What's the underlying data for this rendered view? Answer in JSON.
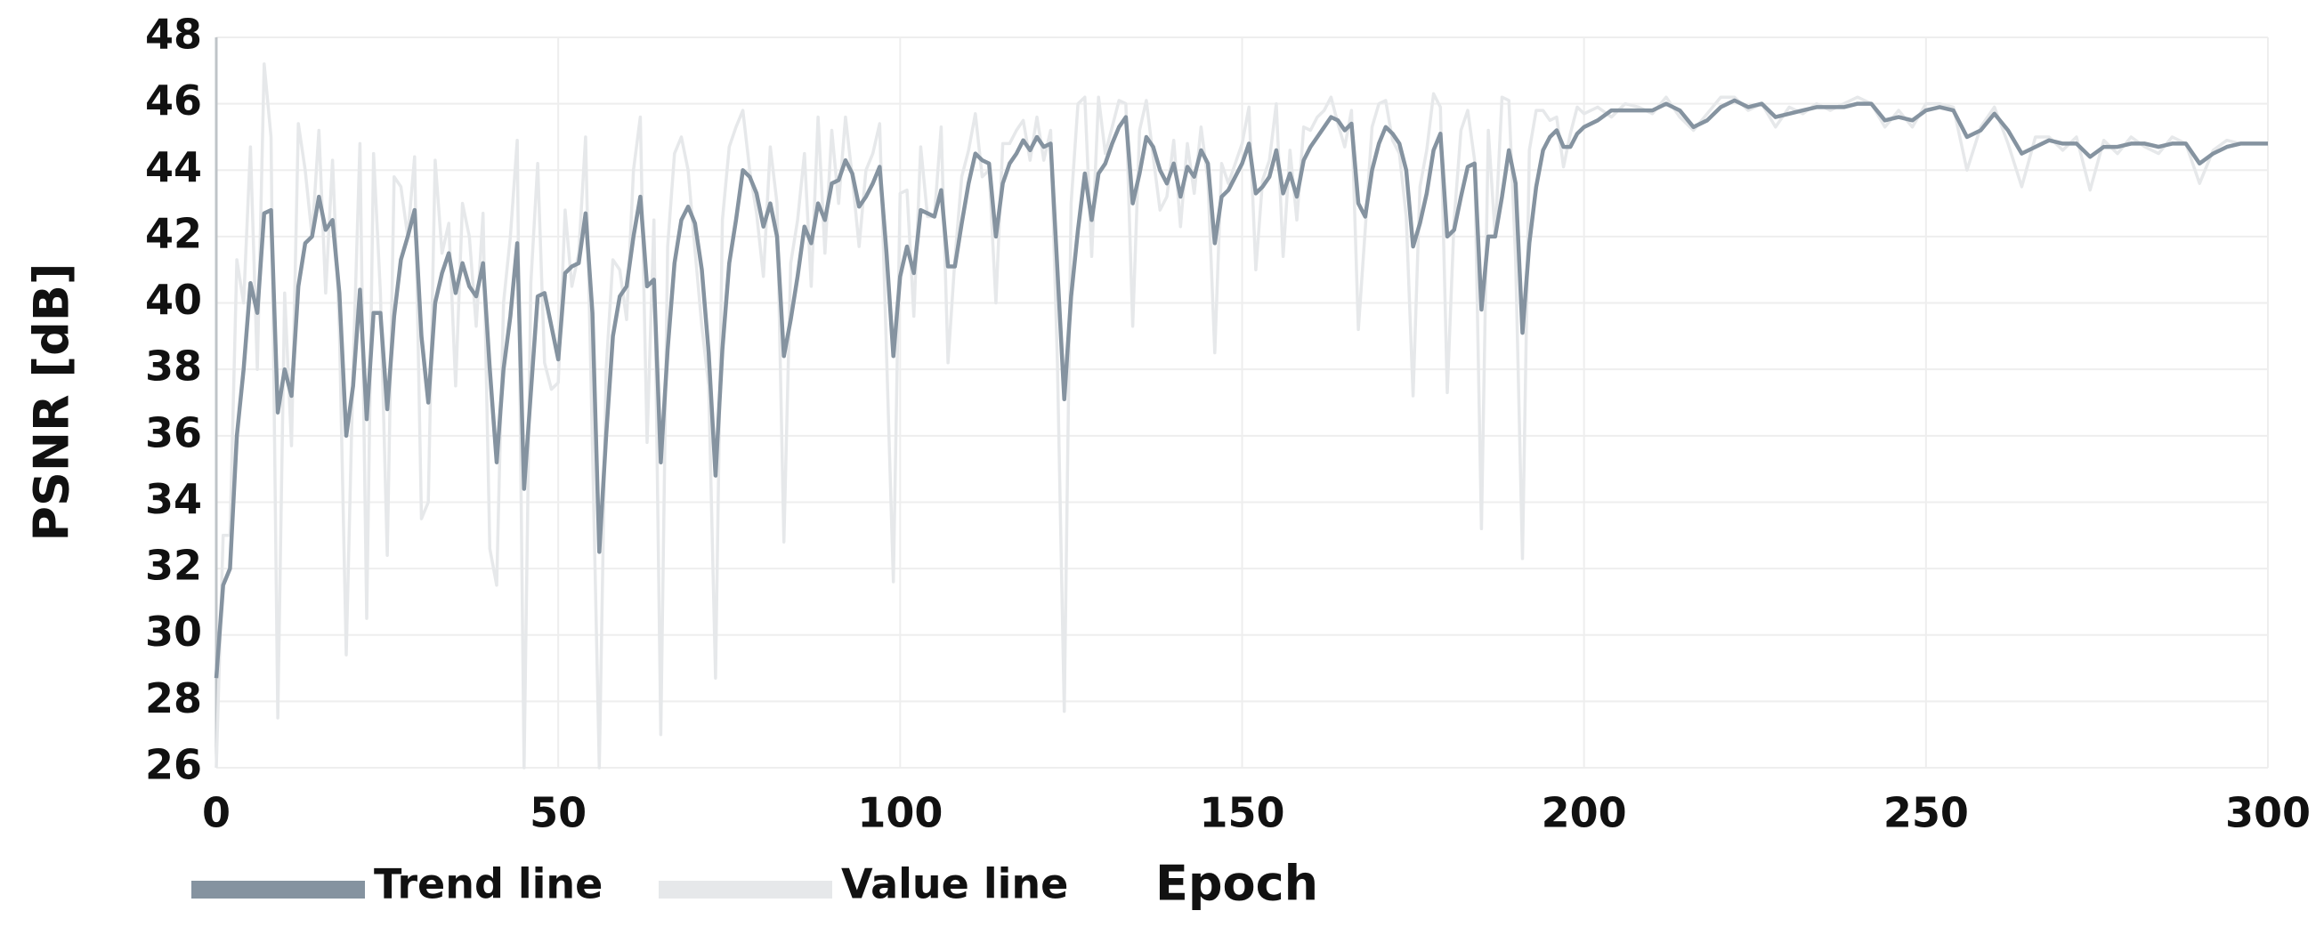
{
  "chart_data": {
    "type": "line",
    "xlabel": "Epoch",
    "ylabel": "PSNR [dB]",
    "x": [
      0,
      1,
      2,
      3,
      4,
      5,
      6,
      7,
      8,
      9,
      10,
      11,
      12,
      13,
      14,
      15,
      16,
      17,
      18,
      19,
      20,
      21,
      22,
      23,
      24,
      25,
      26,
      27,
      28,
      29,
      30,
      31,
      32,
      33,
      34,
      35,
      36,
      37,
      38,
      39,
      40,
      41,
      42,
      43,
      44,
      45,
      46,
      47,
      48,
      49,
      50,
      51,
      52,
      53,
      54,
      55,
      56,
      57,
      58,
      59,
      60,
      61,
      62,
      63,
      64,
      65,
      66,
      67,
      68,
      69,
      70,
      71,
      72,
      73,
      74,
      75,
      76,
      77,
      78,
      79,
      80,
      81,
      82,
      83,
      84,
      85,
      86,
      87,
      88,
      89,
      90,
      91,
      92,
      93,
      94,
      95,
      96,
      97,
      98,
      99,
      100,
      101,
      102,
      103,
      104,
      105,
      106,
      107,
      108,
      109,
      110,
      111,
      112,
      113,
      114,
      115,
      116,
      117,
      118,
      119,
      120,
      121,
      122,
      123,
      124,
      125,
      126,
      127,
      128,
      129,
      130,
      131,
      132,
      133,
      134,
      135,
      136,
      137,
      138,
      139,
      140,
      141,
      142,
      143,
      144,
      145,
      146,
      147,
      148,
      149,
      150,
      151,
      152,
      153,
      154,
      155,
      156,
      157,
      158,
      159,
      160,
      161,
      162,
      163,
      164,
      165,
      166,
      167,
      168,
      169,
      170,
      171,
      172,
      173,
      174,
      175,
      176,
      177,
      178,
      179,
      180,
      181,
      182,
      183,
      184,
      185,
      186,
      187,
      188,
      189,
      190,
      191,
      192,
      193,
      194,
      195,
      196,
      197,
      198,
      199,
      200,
      202,
      204,
      206,
      208,
      210,
      212,
      214,
      216,
      218,
      220,
      222,
      224,
      226,
      228,
      230,
      232,
      234,
      236,
      238,
      240,
      242,
      244,
      246,
      248,
      250,
      252,
      254,
      256,
      258,
      260,
      262,
      264,
      266,
      268,
      270,
      272,
      274,
      276,
      278,
      280,
      282,
      284,
      286,
      288,
      290,
      292,
      294,
      296,
      298,
      300
    ],
    "series": [
      {
        "name": "Trend line",
        "color": "#8593a0",
        "values": [
          28.7,
          31.5,
          32,
          36,
          38,
          40.6,
          39.7,
          42.7,
          42.8,
          36.7,
          38,
          37.2,
          40.5,
          41.8,
          42,
          43.2,
          42.2,
          42.5,
          40.3,
          36,
          37.5,
          40.4,
          36.5,
          39.7,
          39.7,
          36.8,
          39.6,
          41.3,
          42,
          42.8,
          39,
          37,
          40,
          40.9,
          41.5,
          40.3,
          41.2,
          40.5,
          40.2,
          41.2,
          38,
          35.2,
          38,
          39.6,
          41.8,
          34.4,
          37.3,
          40.2,
          40.3,
          39.3,
          38.3,
          40.9,
          41.1,
          41.2,
          42.7,
          39.7,
          32.5,
          36,
          39,
          40.2,
          40.5,
          42,
          43.2,
          40.5,
          40.7,
          35.2,
          38.6,
          41.2,
          42.5,
          42.9,
          42.4,
          41,
          38.5,
          34.8,
          38.6,
          41.2,
          42.5,
          44,
          43.8,
          43.3,
          42.3,
          43,
          42,
          38.4,
          39.5,
          40.8,
          42.3,
          41.8,
          43,
          42.5,
          43.6,
          43.7,
          44.3,
          43.9,
          42.9,
          43.2,
          43.6,
          44.1,
          41.5,
          38.4,
          40.8,
          41.7,
          40.9,
          42.8,
          42.7,
          42.6,
          43.4,
          41.1,
          41.1,
          42.4,
          43.6,
          44.5,
          44.3,
          44.2,
          42,
          43.6,
          44.2,
          44.5,
          44.9,
          44.6,
          45,
          44.7,
          44.8,
          41,
          37.1,
          40.2,
          42.2,
          43.9,
          42.5,
          43.9,
          44.2,
          44.8,
          45.3,
          45.6,
          43,
          43.9,
          45,
          44.7,
          44,
          43.6,
          44.2,
          43.2,
          44.1,
          43.8,
          44.6,
          44.2,
          41.8,
          43.2,
          43.4,
          43.8,
          44.2,
          44.8,
          43.3,
          43.5,
          43.8,
          44.6,
          43.3,
          43.9,
          43.2,
          44.3,
          44.7,
          45,
          45.3,
          45.6,
          45.5,
          45.2,
          45.4,
          43,
          42.6,
          44,
          44.8,
          45.3,
          45.1,
          44.8,
          44,
          41.7,
          42.4,
          43.3,
          44.6,
          45.1,
          42,
          42.2,
          43.2,
          44.1,
          44.2,
          39.8,
          42,
          42,
          43.2,
          44.6,
          43.6,
          39.1,
          41.8,
          43.5,
          44.6,
          45,
          45.2,
          44.7,
          44.7,
          45.1,
          45.3,
          45.5,
          45.8,
          45.8,
          45.8,
          45.8,
          46,
          45.8,
          45.3,
          45.5,
          45.9,
          46.1,
          45.9,
          46,
          45.6,
          45.7,
          45.8,
          45.9,
          45.9,
          45.9,
          46,
          46,
          45.5,
          45.6,
          45.5,
          45.8,
          45.9,
          45.8,
          45,
          45.2,
          45.7,
          45.2,
          44.5,
          44.7,
          44.9,
          44.8,
          44.8,
          44.4,
          44.7,
          44.7,
          44.8,
          44.8,
          44.7,
          44.8,
          44.8,
          44.2,
          44.5,
          44.7,
          44.8,
          44.8,
          44.8
        ]
      },
      {
        "name": "Value line",
        "color": "#e6e8ea",
        "values": [
          26,
          33,
          33,
          41.3,
          40,
          44.7,
          38,
          47.2,
          45,
          27.5,
          40.3,
          35.7,
          45.4,
          44,
          42,
          45.2,
          40.3,
          44.3,
          39.2,
          29.4,
          38,
          44.8,
          30.5,
          44.5,
          40.3,
          32.4,
          43.8,
          43.5,
          42,
          44.4,
          33.5,
          34,
          44.3,
          41.5,
          42.4,
          37.5,
          43,
          42,
          39.3,
          42.7,
          32.6,
          31.5,
          40,
          42,
          44.9,
          26,
          40.6,
          44.2,
          38.2,
          37.4,
          37.6,
          42.8,
          40.5,
          41.5,
          45,
          35.7,
          26,
          38,
          41.3,
          41,
          39.5,
          44,
          45.6,
          35.8,
          42.5,
          27,
          41.7,
          44.5,
          45,
          44,
          41.6,
          39.3,
          37.5,
          28.7,
          42.5,
          44.7,
          45.3,
          45.8,
          44,
          42.7,
          40.8,
          44.7,
          43,
          32.8,
          41.2,
          42.5,
          44.5,
          40.5,
          45.6,
          41.5,
          45.2,
          43,
          45.6,
          43.8,
          41.7,
          44,
          44.5,
          45.4,
          38.5,
          31.6,
          43.3,
          43.4,
          39.6,
          44.7,
          42.6,
          42.6,
          45.3,
          38.2,
          41.3,
          43.8,
          44.6,
          45.7,
          43.8,
          44,
          40,
          44.8,
          44.8,
          45.2,
          45.5,
          44.3,
          45.6,
          44.3,
          45.2,
          38.2,
          27.7,
          43,
          46,
          46.2,
          41.4,
          46.2,
          44.5,
          45.3,
          46.1,
          46,
          39.3,
          45.2,
          46.1,
          44.4,
          42.8,
          43.2,
          44.9,
          42.3,
          44.8,
          43.3,
          45.3,
          43.7,
          38.5,
          44.2,
          43.6,
          44.2,
          44.8,
          45.9,
          41,
          43.7,
          44.3,
          46,
          41.4,
          44.6,
          42.5,
          45.3,
          45.2,
          45.6,
          45.8,
          46.2,
          45.4,
          44.7,
          45.8,
          39.2,
          42.2,
          45.3,
          46,
          46.1,
          44.9,
          44.5,
          42.6,
          37.2,
          43.5,
          44.6,
          46.3,
          45.9,
          37.3,
          42.5,
          45.2,
          45.8,
          44.3,
          33.2,
          45.2,
          42,
          46.2,
          46.1,
          41.3,
          32.3,
          44.6,
          45.8,
          45.8,
          45.5,
          45.6,
          44.1,
          45.1,
          45.9,
          45.7,
          45.9,
          45.6,
          46,
          45.9,
          45.7,
          46.2,
          45.6,
          45.2,
          45.7,
          46.2,
          46.2,
          45.8,
          46,
          45.3,
          45.9,
          45.7,
          46,
          45.8,
          46,
          46.2,
          46,
          45.3,
          45.8,
          45.3,
          46,
          46,
          45.9,
          44,
          45.3,
          45.9,
          44.8,
          43.5,
          45,
          45,
          44.6,
          45,
          43.4,
          44.9,
          44.5,
          45,
          44.7,
          44.5,
          45,
          44.8,
          43.6,
          44.6,
          44.9,
          44.8,
          44.8,
          44.8
        ]
      }
    ],
    "xlim": [
      0,
      300
    ],
    "xticks": [
      0,
      50,
      100,
      150,
      200,
      250,
      300
    ],
    "ylim": [
      26,
      48
    ],
    "yticks": [
      26,
      28,
      30,
      32,
      34,
      36,
      38,
      40,
      42,
      44,
      46,
      48
    ],
    "grid": true,
    "legend": "bottom"
  }
}
